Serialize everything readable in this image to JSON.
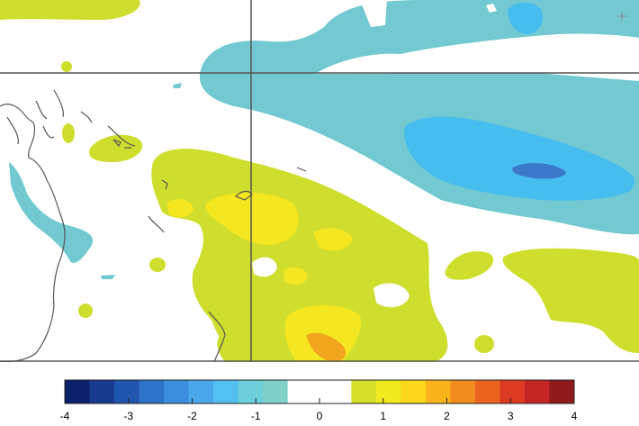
{
  "colorbar": {
    "min": -4,
    "max": 4,
    "white_band": [
      -0.5,
      0.5
    ],
    "ticks": [
      {
        "value": -4,
        "label": "-4"
      },
      {
        "value": -3,
        "label": "-3"
      },
      {
        "value": -2,
        "label": "-2"
      },
      {
        "value": -1,
        "label": "-1"
      },
      {
        "value": 0,
        "label": "0"
      },
      {
        "value": 1,
        "label": "1"
      },
      {
        "value": 2,
        "label": "2"
      },
      {
        "value": 3,
        "label": "3"
      },
      {
        "value": 4,
        "label": "4"
      }
    ],
    "colors_negative": [
      "#0b1f6b",
      "#173a8e",
      "#2156b0",
      "#2c72c8",
      "#3b8ede",
      "#4aa8ea",
      "#52c0f0",
      "#6ccfd9",
      "#7fd0c6"
    ],
    "colors_positive": [
      "#d4e02a",
      "#f0ea1e",
      "#fad71a",
      "#f8b41a",
      "#f28c1e",
      "#ea6420",
      "#dd3a22",
      "#c42424",
      "#8e1a1a"
    ]
  },
  "map_colors": {
    "neg_light": "#72c9d2",
    "neg_mid": "#45bdee",
    "neg_dark": "#3a79c9",
    "pos_light": "#cfdd2c",
    "pos_yellow": "#f4e61f",
    "pos_orange": "#f2a51d",
    "coast": "#555555",
    "grid": "#555555"
  }
}
